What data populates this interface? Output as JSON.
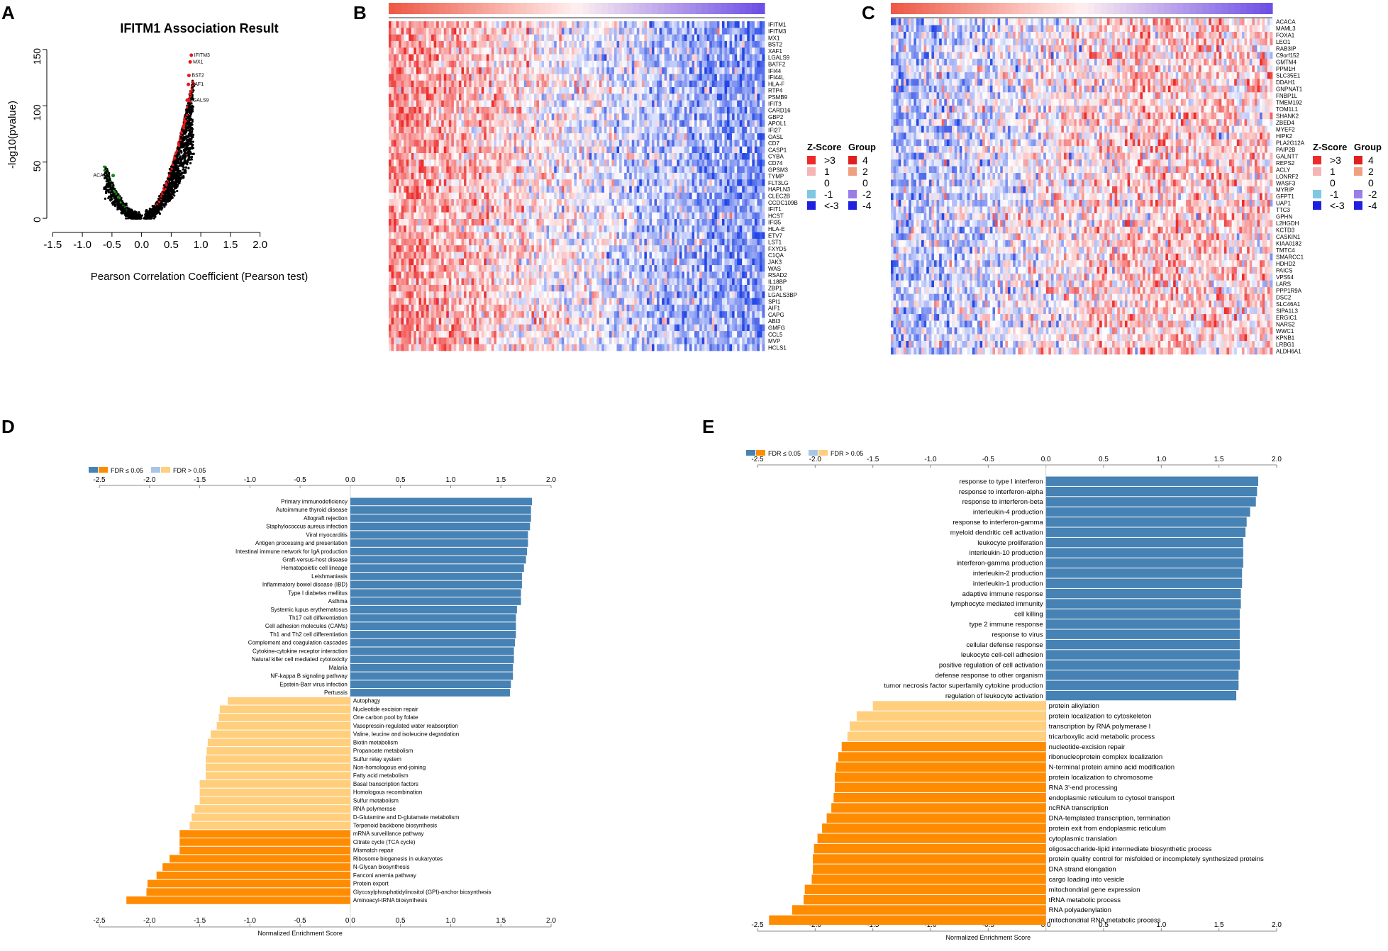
{
  "colors": {
    "fdr_sig_blue": "#4682b4",
    "fdr_sig_orange": "#ff8c00",
    "fdr_ns_blue": "#a9c5e4",
    "fdr_ns_orange": "#ffcf7e",
    "heat_red": "#ee2b2b",
    "heat_blue": "#2346e6",
    "point_red": "#e41a1c",
    "point_green": "#1a8a1a"
  },
  "panels": {
    "A": "A",
    "B": "B",
    "C": "C",
    "D": "D",
    "E": "E"
  },
  "chart_data": [
    {
      "id": "A",
      "type": "scatter",
      "title": "IFITM1 Association Result",
      "xlabel": "Pearson Correlation Coefficient (Pearson test)",
      "ylabel": "-log10(pvalue)",
      "xlim": [
        -1.6,
        2.1
      ],
      "ylim": [
        -5,
        155
      ],
      "xticks": [
        "-1.5",
        "-1.0",
        "-0.5",
        "0.0",
        "0.5",
        "1.0",
        "1.5",
        "2.0"
      ],
      "xtick_values": [
        -1.5,
        -1.0,
        -0.5,
        0.0,
        0.5,
        1.0,
        1.5,
        2.0
      ],
      "yticks": [
        "0",
        "50",
        "100",
        "150"
      ],
      "ytick_values": [
        0,
        50,
        100,
        150
      ],
      "highlight_points": [
        {
          "x": 0.84,
          "y": 145,
          "label": "IFITM3"
        },
        {
          "x": 0.82,
          "y": 139,
          "label": "MX1"
        },
        {
          "x": 0.8,
          "y": 127,
          "label": "BST2"
        },
        {
          "x": 0.79,
          "y": 119,
          "label": "XAF1"
        },
        {
          "x": 0.77,
          "y": 105,
          "label": "LGALS9"
        },
        {
          "x": -0.48,
          "y": 38,
          "label": "ACACA"
        }
      ]
    },
    {
      "id": "B",
      "type": "heatmap",
      "genes": [
        "IFITM1",
        "IFITM3",
        "MX1",
        "BST2",
        "XAF1",
        "LGALS9",
        "BATF2",
        "IFI44",
        "IFI44L",
        "HLA-F",
        "RTP4",
        "PSMB9",
        "IFIT3",
        "CARD16",
        "GBP2",
        "APOL1",
        "IFI27",
        "OASL",
        "CD7",
        "CASP1",
        "CYBA",
        "CD74",
        "GPSM3",
        "TYMP",
        "FLT3LG",
        "HAPLN3",
        "CLEC2B",
        "CCDC109B",
        "IFIT1",
        "HCST",
        "IFI35",
        "HLA-E",
        "ETV7",
        "LST1",
        "FXYD5",
        "C1QA",
        "JAK3",
        "WAS",
        "RSAD2",
        "IL18BP",
        "ZBP1",
        "LGALS3BP",
        "SPI1",
        "AIF1",
        "CAPG",
        "ABI3",
        "GMFG",
        "CCL5",
        "MVP",
        "HCLS1"
      ],
      "legend": {
        "zscore_title": "Z-Score",
        "zscore_labels": [
          ">3",
          "1",
          "0",
          "-1",
          "<-3"
        ],
        "group_title": "Group",
        "group_labels": [
          "4",
          "2",
          "0",
          "-2",
          "-4"
        ]
      }
    },
    {
      "id": "C",
      "type": "heatmap",
      "genes": [
        "ACACA",
        "MAML3",
        "FOXA1",
        "LEO1",
        "RAB3IP",
        "C9orf152",
        "GMTM4",
        "PPM1H",
        "SLC35E1",
        "DDAH1",
        "GNPNAT1",
        "FNBP1L",
        "TMEM192",
        "TOM1L1",
        "SHANK2",
        "ZBED4",
        "MYEF2",
        "HIPK2",
        "PLA2G12A",
        "PAIP2B",
        "GALNT7",
        "REPS2",
        "ACLY",
        "LONRF2",
        "WASF3",
        "MYRIP",
        "GFPT1",
        "UAP1",
        "TTC3",
        "GPHN",
        "L2HGDH",
        "KCTD3",
        "CASKIN1",
        "KIAA0182",
        "TMTC4",
        "SMARCC1",
        "HDHD2",
        "PAICS",
        "VPS54",
        "LARS",
        "PPP1R9A",
        "DSC2",
        "SLC46A1",
        "SIPA1L3",
        "ERGIC1",
        "NARS2",
        "WWC1",
        "KPNB1",
        "LRBG1",
        "ALDH6A1"
      ],
      "legend": {
        "zscore_title": "Z-Score",
        "zscore_labels": [
          ">3",
          "1",
          "0",
          "-1",
          "<-3"
        ],
        "group_title": "Group",
        "group_labels": [
          "4",
          "2",
          "0",
          "-2",
          "-4"
        ]
      }
    },
    {
      "id": "D",
      "type": "bar",
      "orientation": "horizontal",
      "xlabel": "Normalized Enrichment Score",
      "xlim": [
        -2.5,
        2.0
      ],
      "xticks": [
        "-2.5",
        "-2.0",
        "-1.5",
        "-1.0",
        "-0.5",
        "0.0",
        "0.5",
        "1.0",
        "1.5",
        "2.0"
      ],
      "xtick_values": [
        -2.5,
        -2.0,
        -1.5,
        -1.0,
        -0.5,
        0.0,
        0.5,
        1.0,
        1.5,
        2.0
      ],
      "legend": {
        "sig_label": "FDR ≤ 0.05",
        "ns_label": "FDR > 0.05"
      },
      "categories": [
        "Primary immunodeficiency",
        "Autoimmune thyroid disease",
        "Allograft rejection",
        "Staphylococcus aureus infection",
        "Viral myocarditis",
        "Antigen processing and presentation",
        "Intestinal immune network for IgA production",
        "Graft-versus-host disease",
        "Hematopoietic cell lineage",
        "Leishmaniasis",
        "Inflammatory bowel disease (IBD)",
        "Type I diabetes mellitus",
        "Asthma",
        "Systemic lupus erythematosus",
        "Th17 cell differentiation",
        "Cell adhesion molecules (CAMs)",
        "Th1 and Th2 cell differentiation",
        "Complement and coagulation cascades",
        "Cytokine-cytokine receptor interaction",
        "Natural killer cell mediated cytotoxicity",
        "Malaria",
        "NF-kappa B signaling pathway",
        "Epstein-Barr virus infection",
        "Pertussis",
        "Autophagy",
        "Nucleotide excision repair",
        "One carbon pool by folate",
        "Vasopressin-regulated water reabsorption",
        "Valine, leucine and isoleucine degradation",
        "Biotin metabolism",
        "Propanoate metabolism",
        "Sulfur relay system",
        "Non-homologous end-joining",
        "Fatty acid metabolism",
        "Basal transcription factors",
        "Homologous recombination",
        "Sulfur metabolism",
        "RNA polymerase",
        "D-Glutamine and D-glutamate metabolism",
        "Terpenoid backbone biosynthesis",
        "mRNA surveillance pathway",
        "Citrate cycle (TCA cycle)",
        "Mismatch repair",
        "Ribosome biogenesis in eukaryotes",
        "N-Glycan biosynthesis",
        "Fanconi anemia pathway",
        "Protein export",
        "Glycosylphosphatidylinositol (GPI)-anchor biosynthesis",
        "Aminoacyl-tRNA biosynthesis"
      ],
      "values": [
        1.81,
        1.8,
        1.8,
        1.79,
        1.77,
        1.77,
        1.76,
        1.75,
        1.73,
        1.71,
        1.71,
        1.7,
        1.7,
        1.66,
        1.65,
        1.65,
        1.65,
        1.64,
        1.63,
        1.63,
        1.62,
        1.62,
        1.6,
        1.59,
        -1.22,
        -1.3,
        -1.31,
        -1.33,
        -1.39,
        -1.42,
        -1.43,
        -1.44,
        -1.44,
        -1.44,
        -1.5,
        -1.5,
        -1.5,
        -1.55,
        -1.58,
        -1.6,
        -1.7,
        -1.7,
        -1.7,
        -1.8,
        -1.87,
        -1.93,
        -2.02,
        -2.03,
        -2.23
      ],
      "significant": [
        true,
        true,
        true,
        true,
        true,
        true,
        true,
        true,
        true,
        true,
        true,
        true,
        true,
        true,
        true,
        true,
        true,
        true,
        true,
        true,
        true,
        true,
        true,
        true,
        false,
        false,
        false,
        false,
        false,
        false,
        false,
        false,
        false,
        false,
        false,
        false,
        false,
        false,
        false,
        false,
        true,
        true,
        true,
        true,
        true,
        true,
        true,
        true,
        true
      ]
    },
    {
      "id": "E",
      "type": "bar",
      "orientation": "horizontal",
      "xlabel": "Normalized Enrichment Score",
      "xlim": [
        -2.5,
        2.0
      ],
      "xticks": [
        "-2.5",
        "-2.0",
        "-1.5",
        "-1.0",
        "-0.5",
        "0.0",
        "0.5",
        "1.0",
        "1.5",
        "2.0"
      ],
      "xtick_values": [
        -2.5,
        -2.0,
        -1.5,
        -1.0,
        -0.5,
        0.0,
        0.5,
        1.0,
        1.5,
        2.0
      ],
      "legend": {
        "sig_label": "FDR ≤ 0.05",
        "ns_label": "FDR > 0.05"
      },
      "categories": [
        "response to type I interferon",
        "response to interferon-alpha",
        "response to interferon-beta",
        "interleukin-4 production",
        "response to interferon-gamma",
        "myeloid dendritic cell activation",
        "leukocyte proliferation",
        "interleukin-10 production",
        "interferon-gamma production",
        "interleukin-2 production",
        "interleukin-1 production",
        "adaptive immune response",
        "lymphocyte mediated immunity",
        "cell killing",
        "type 2 immune response",
        "response to virus",
        "cellular defense response",
        "leukocyte cell-cell adhesion",
        "positive regulation of cell activation",
        "defense response to other organism",
        "tumor necrosis factor superfamily cytokine production",
        "regulation of leukocyte activation",
        "protein alkylation",
        "protein localization to cytoskeleton",
        "transcription by RNA polymerase I",
        "tricarboxylic acid metabolic process",
        "nucleotide-excision repair",
        "ribonucleoprotein complex localization",
        "N-terminal protein amino acid modification",
        "protein localization to chromosome",
        "RNA 3'-end processing",
        "endoplasmic reticulum to cytosol transport",
        "ncRNA transcription",
        "DNA-templated transcription, termination",
        "protein exit from endoplasmic reticulum",
        "cytoplasmic translation",
        "oligosaccharide-lipid intermediate biosynthetic process",
        "protein quality control for misfolded or incompletely synthesized proteins",
        "DNA strand elongation",
        "cargo loading into vesicle",
        "mitochondrial gene expression",
        "tRNA metabolic process",
        "RNA polyadenylation",
        "mitochondrial RNA metabolic process"
      ],
      "values": [
        1.84,
        1.83,
        1.82,
        1.77,
        1.74,
        1.73,
        1.71,
        1.71,
        1.71,
        1.7,
        1.7,
        1.69,
        1.69,
        1.68,
        1.68,
        1.68,
        1.68,
        1.68,
        1.68,
        1.67,
        1.67,
        1.65,
        -1.5,
        -1.64,
        -1.7,
        -1.72,
        -1.77,
        -1.8,
        -1.82,
        -1.83,
        -1.83,
        -1.84,
        -1.86,
        -1.9,
        -1.94,
        -1.98,
        -2.01,
        -2.02,
        -2.02,
        -2.03,
        -2.09,
        -2.1,
        -2.2,
        -2.4
      ],
      "significant": [
        true,
        true,
        true,
        true,
        true,
        true,
        true,
        true,
        true,
        true,
        true,
        true,
        true,
        true,
        true,
        true,
        true,
        true,
        true,
        true,
        true,
        true,
        false,
        false,
        false,
        false,
        true,
        true,
        true,
        true,
        true,
        true,
        true,
        true,
        true,
        true,
        true,
        true,
        true,
        true,
        true,
        true,
        true,
        true
      ]
    }
  ]
}
